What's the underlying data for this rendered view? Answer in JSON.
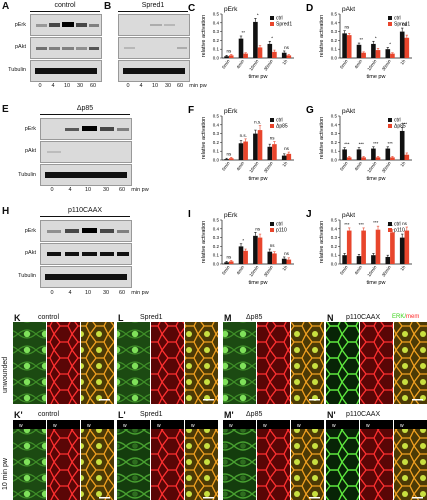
{
  "panels": {
    "A": {
      "letter": "A",
      "title": "control"
    },
    "B": {
      "letter": "B",
      "title": "Spred1"
    },
    "E": {
      "letter": "E",
      "title": "Δp85"
    },
    "H": {
      "letter": "H",
      "title": "p110CAAX"
    }
  },
  "blots": {
    "row_labels": [
      "pErk",
      "pAkt",
      "Tubulin"
    ],
    "timepoints_AB": [
      "0",
      "4",
      "10",
      "30",
      "60"
    ],
    "timepoints_EH": [
      "0",
      "4",
      "10",
      "30",
      "60"
    ],
    "unit": "min pw"
  },
  "micro": {
    "cols": [
      {
        "letter": "K",
        "title": "control"
      },
      {
        "letter": "L",
        "title": "Spred1"
      },
      {
        "letter": "M",
        "title": "Δp85"
      },
      {
        "letter": "N",
        "title": "p110CAAX"
      }
    ],
    "cols2": [
      {
        "letter": "K'",
        "title": "control"
      },
      {
        "letter": "L'",
        "title": "Spred1"
      },
      {
        "letter": "M'",
        "title": "Δp85"
      },
      {
        "letter": "N'",
        "title": "p110CAAX"
      }
    ],
    "row1_label": "unwounded",
    "row2_label": "10 min pw",
    "legend_green": "ERK",
    "legend_red": "mem"
  },
  "chart_data": [
    {
      "type": "bar",
      "panel": "C",
      "title": "pErk",
      "xlabel": "time pw",
      "ylabel": "relative activation",
      "categories": [
        "0min",
        "4min",
        "10min",
        "30min",
        "1h"
      ],
      "ylim": [
        0,
        0.5
      ],
      "series": [
        {
          "name": "ctrl",
          "values": [
            0.02,
            0.22,
            0.41,
            0.16,
            0.06
          ],
          "errors": [
            0.01,
            0.03,
            0.04,
            0.03,
            0.02
          ]
        },
        {
          "name": "Spred1",
          "values": [
            0.03,
            0.05,
            0.12,
            0.07,
            0.03
          ],
          "errors": [
            0.01,
            0.01,
            0.02,
            0.02,
            0.01
          ]
        }
      ],
      "sig": [
        "ns",
        "**",
        "*",
        "*",
        "ns"
      ],
      "legend": "top-right"
    },
    {
      "type": "bar",
      "panel": "D",
      "title": "pAkt",
      "xlabel": "time pw",
      "ylabel": "relative activation",
      "categories": [
        "0min",
        "4min",
        "10min",
        "30min",
        "1h"
      ],
      "ylim": [
        0,
        0.5
      ],
      "series": [
        {
          "name": "ctrl",
          "values": [
            0.28,
            0.15,
            0.16,
            0.1,
            0.3
          ],
          "errors": [
            0.03,
            0.02,
            0.03,
            0.02,
            0.04
          ]
        },
        {
          "name": "Spred1",
          "values": [
            0.26,
            0.06,
            0.09,
            0.05,
            0.23
          ],
          "errors": [
            0.02,
            0.01,
            0.02,
            0.01,
            0.03
          ]
        }
      ],
      "sig": [
        "ns",
        "**",
        "*",
        "*",
        "ns"
      ],
      "legend": "top-right"
    },
    {
      "type": "bar",
      "panel": "F",
      "title": "pErk",
      "xlabel": "time pw",
      "ylabel": "relative activation",
      "categories": [
        "0min",
        "4min",
        "10min",
        "30min",
        "1h"
      ],
      "ylim": [
        0,
        0.5
      ],
      "series": [
        {
          "name": "ctrl",
          "values": [
            0.01,
            0.19,
            0.3,
            0.15,
            0.05
          ],
          "errors": [
            0.01,
            0.03,
            0.04,
            0.03,
            0.02
          ]
        },
        {
          "name": "Δp85",
          "values": [
            0.02,
            0.21,
            0.34,
            0.18,
            0.07
          ],
          "errors": [
            0.01,
            0.03,
            0.05,
            0.03,
            0.02
          ]
        }
      ],
      "sig": [
        "ns",
        "n.s.",
        "n.s.",
        "ns",
        "ns"
      ],
      "legend": "top-right"
    },
    {
      "type": "bar",
      "panel": "G",
      "title": "pAkt",
      "xlabel": "time pw",
      "ylabel": "relative activation",
      "categories": [
        "0min",
        "4min",
        "10min",
        "30min",
        "1h"
      ],
      "ylim": [
        0,
        0.5
      ],
      "series": [
        {
          "name": "ctrl",
          "values": [
            0.12,
            0.12,
            0.13,
            0.13,
            0.33
          ],
          "errors": [
            0.02,
            0.02,
            0.02,
            0.02,
            0.04
          ]
        },
        {
          "name": "Δp85",
          "values": [
            0.03,
            0.03,
            0.03,
            0.03,
            0.06
          ],
          "errors": [
            0.01,
            0.01,
            0.01,
            0.01,
            0.02
          ]
        }
      ],
      "sig": [
        "***",
        "***",
        "***",
        "***",
        "***"
      ],
      "legend": "top-right"
    },
    {
      "type": "bar",
      "panel": "I",
      "title": "pErk",
      "xlabel": "time pw",
      "ylabel": "relative activation",
      "categories": [
        "0min",
        "4min",
        "10min",
        "30min",
        "1h"
      ],
      "ylim": [
        0,
        0.5
      ],
      "series": [
        {
          "name": "ctrl",
          "values": [
            0.02,
            0.2,
            0.32,
            0.14,
            0.06
          ],
          "errors": [
            0.01,
            0.03,
            0.04,
            0.03,
            0.02
          ]
        },
        {
          "name": "p110",
          "values": [
            0.03,
            0.15,
            0.3,
            0.12,
            0.05
          ],
          "errors": [
            0.01,
            0.02,
            0.04,
            0.02,
            0.02
          ]
        }
      ],
      "sig": [
        "ns",
        "*",
        "ns",
        "ns",
        "ns"
      ],
      "legend": "top-right"
    },
    {
      "type": "bar",
      "panel": "J",
      "title": "pAkt",
      "xlabel": "time pw",
      "ylabel": "relative activation",
      "categories": [
        "0min",
        "4min",
        "10min",
        "30min",
        "1h"
      ],
      "ylim": [
        0,
        0.5
      ],
      "series": [
        {
          "name": "ctrl",
          "values": [
            0.1,
            0.09,
            0.1,
            0.08,
            0.3
          ],
          "errors": [
            0.02,
            0.02,
            0.02,
            0.02,
            0.04
          ]
        },
        {
          "name": "p110",
          "values": [
            0.38,
            0.38,
            0.39,
            0.36,
            0.38
          ],
          "errors": [
            0.03,
            0.03,
            0.04,
            0.03,
            0.04
          ]
        }
      ],
      "sig": [
        "***",
        "***",
        "***",
        "***",
        "ns"
      ],
      "legend": "top-right"
    }
  ]
}
